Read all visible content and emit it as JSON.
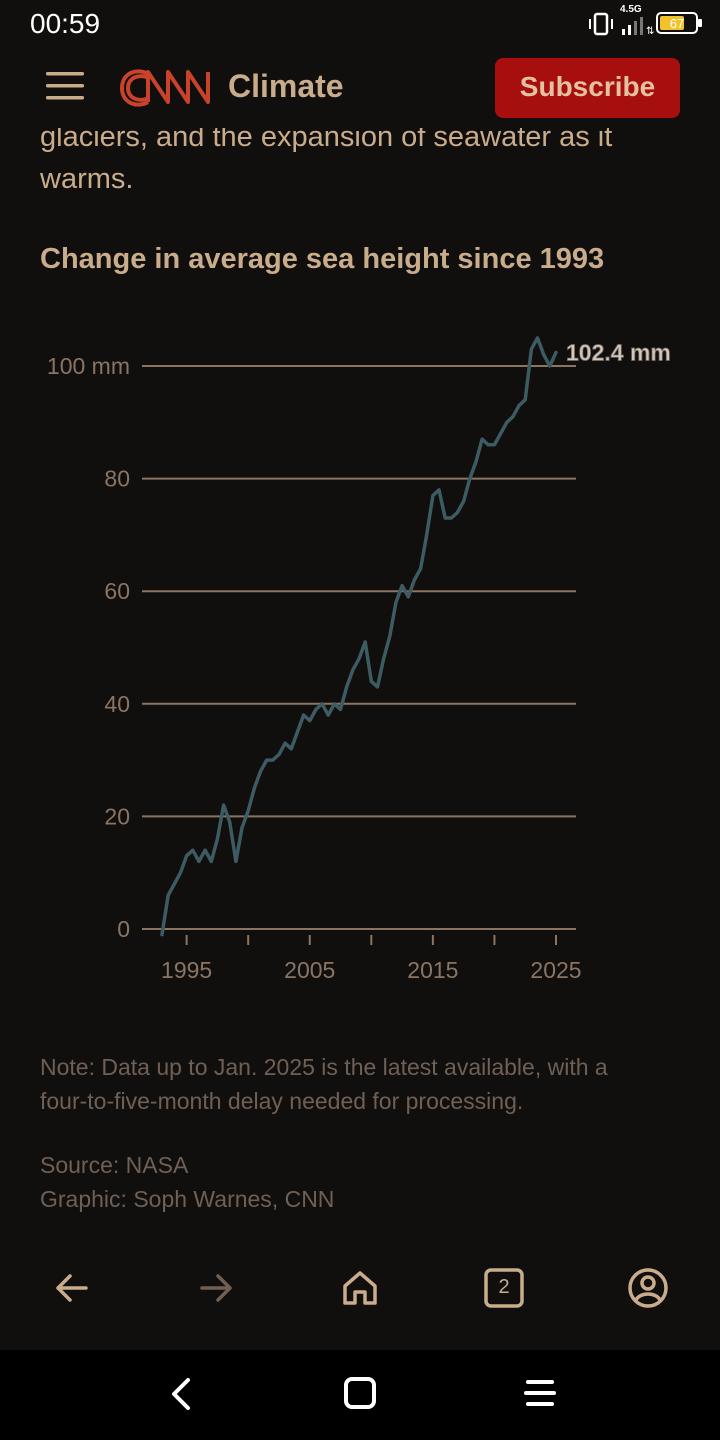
{
  "status_bar": {
    "time": "00:59",
    "network": "4.5G",
    "battery": "67"
  },
  "header": {
    "section": "Climate",
    "subscribe_label": "Subscribe",
    "brand_color": "#a70e0e"
  },
  "article": {
    "intro_line1": "glaciers, and the expansion of seawater as it",
    "intro_line2": "warms.",
    "chart_title": "Change in average sea height since 1993",
    "note_line1": "Note: Data up to Jan. 2025 is the latest available, with a",
    "note_line2": "four-to-five-month delay needed for processing.",
    "source": "Source: NASA",
    "graphic": "Graphic: Soph Warnes, CNN"
  },
  "chart_data": {
    "type": "line",
    "title": "Change in average sea height since 1993",
    "series": [
      {
        "color": "#3d5b62",
        "x": [
          1993.0,
          1993.5,
          1994.0,
          1994.5,
          1995.0,
          1995.5,
          1996.0,
          1996.5,
          1997.0,
          1997.5,
          1998.0,
          1998.5,
          1999.0,
          1999.5,
          2000.0,
          2000.5,
          2001.0,
          2001.5,
          2002.0,
          2002.5,
          2003.0,
          2003.5,
          2004.0,
          2004.5,
          2005.0,
          2005.5,
          2006.0,
          2006.5,
          2007.0,
          2007.5,
          2008.0,
          2008.5,
          2009.0,
          2009.5,
          2010.0,
          2010.5,
          2011.0,
          2011.5,
          2012.0,
          2012.5,
          2013.0,
          2013.5,
          2014.0,
          2014.5,
          2015.0,
          2015.5,
          2016.0,
          2016.5,
          2017.0,
          2017.5,
          2018.0,
          2018.5,
          2019.0,
          2019.5,
          2020.0,
          2020.5,
          2021.0,
          2021.5,
          2022.0,
          2022.5,
          2023.0,
          2023.5,
          2024.0,
          2024.5,
          2025.0
        ],
        "y": [
          -1,
          6,
          8,
          10,
          13,
          14,
          12,
          14,
          12,
          16,
          22,
          19,
          12,
          18,
          21,
          25,
          28,
          30,
          30,
          31,
          33,
          32,
          35,
          38,
          37,
          39,
          40,
          38,
          40,
          39,
          43,
          46,
          48,
          51,
          44,
          43,
          48,
          52,
          58,
          61,
          59,
          62,
          64,
          70,
          77,
          78,
          73,
          73,
          74,
          76,
          80,
          83,
          87,
          86,
          86,
          88,
          90,
          91,
          93,
          94,
          103,
          105,
          102,
          100,
          102.4
        ]
      }
    ],
    "end_label": "102.4 mm",
    "y_ticks": [
      {
        "value": 0,
        "label": "0"
      },
      {
        "value": 20,
        "label": "20"
      },
      {
        "value": 40,
        "label": "40"
      },
      {
        "value": 60,
        "label": "60"
      },
      {
        "value": 80,
        "label": "80"
      },
      {
        "value": 100,
        "label": "100 mm"
      }
    ],
    "x_ticks": [
      1995,
      2000,
      2005,
      2010,
      2015,
      2020,
      2025
    ],
    "x_labels": [
      {
        "value": 1995,
        "label": "1995"
      },
      {
        "value": 2005,
        "label": "2005"
      },
      {
        "value": 2015,
        "label": "2015"
      },
      {
        "value": 2025,
        "label": "2025"
      }
    ],
    "xlim": [
      1993,
      2025
    ],
    "ylim": [
      0,
      100
    ],
    "grid": true
  },
  "browser_nav": {
    "tab_count": "2"
  }
}
